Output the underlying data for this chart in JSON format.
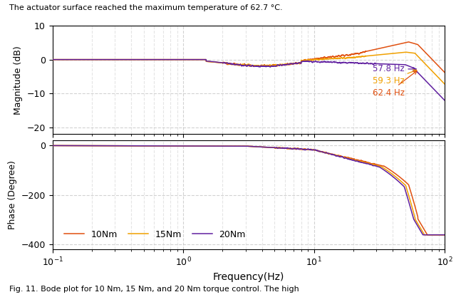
{
  "title_top": "The actuator surface reached the maximum temperature of 62.7 °C.",
  "caption": "Fig. 11. Bode plot for 10 Nm, 15 Nm, and 20 Nm torque control. The high",
  "freq_min": 0.1,
  "freq_max": 100,
  "mag_ylim": [
    -22,
    10
  ],
  "phase_ylim": [
    -420,
    20
  ],
  "mag_yticks": [
    10,
    0,
    -10,
    -20
  ],
  "phase_yticks": [
    0,
    -200,
    -400
  ],
  "xlabel": "Frequency(Hz)",
  "ylabel_mag": "Magnitude (dB)",
  "ylabel_phase": "Phase (Degree)",
  "colors": {
    "10Nm": "#e05010",
    "15Nm": "#f0a000",
    "20Nm": "#6020a0"
  },
  "linewidth": 1.1,
  "annotation_colors": {
    "57.8 Hz": "#6020a0",
    "59.3 Hz": "#f0a000",
    "62.4 Hz": "#e05010"
  },
  "background": "#ffffff",
  "grid_color": "#c0c0c0",
  "grid_style": "--",
  "grid_alpha": 0.7
}
